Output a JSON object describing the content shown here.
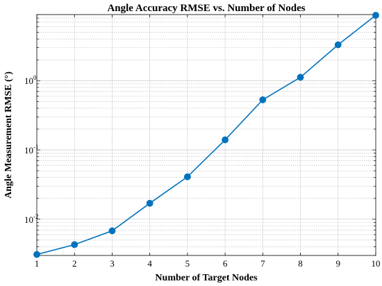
{
  "chart_data": {
    "type": "line",
    "title": "Angle Accuracy RMSE vs. Number of Nodes",
    "xlabel": "Number of Target Nodes",
    "ylabel": "Angle Measurement RMSE (°)",
    "xlim": [
      1,
      10
    ],
    "ylim": [
      0.003,
      9
    ],
    "yscale": "log",
    "grid": true,
    "x_ticks": [
      "1",
      "2",
      "3",
      "4",
      "5",
      "6",
      "7",
      "8",
      "9",
      "10"
    ],
    "y_ticks": [
      {
        "value": 0.01,
        "base": "10",
        "exp": "-2"
      },
      {
        "value": 0.1,
        "base": "10",
        "exp": "-1"
      },
      {
        "value": 1,
        "base": "10",
        "exp": "0"
      }
    ],
    "series": [
      {
        "color": "#0072BD",
        "x": [
          1,
          2,
          3,
          4,
          5,
          6,
          7,
          8,
          9,
          10
        ],
        "y": [
          0.0031,
          0.0043,
          0.0068,
          0.017,
          0.041,
          0.14,
          0.53,
          1.12,
          3.3,
          8.8
        ]
      }
    ]
  }
}
